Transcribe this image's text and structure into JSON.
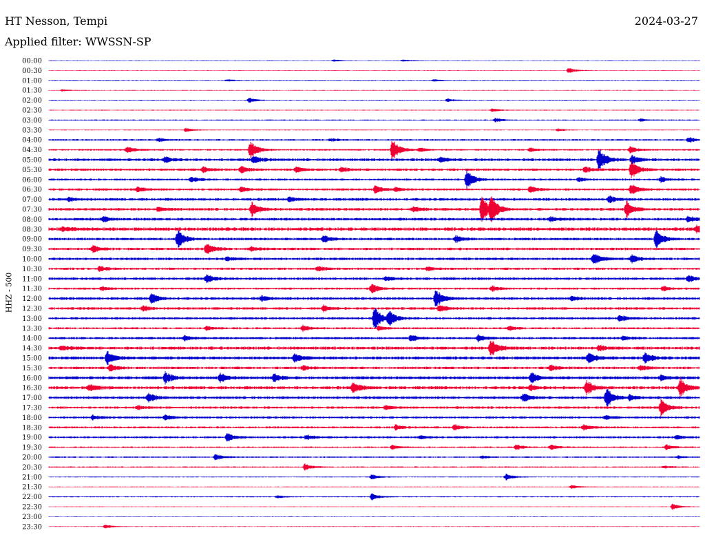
{
  "header": {
    "station": "HT Nesson, Tempi",
    "date": "2024-03-27",
    "filter": "Applied filter: WWSSN-SP"
  },
  "chart_data": {
    "type": "line",
    "title": "HT Nesson, Tempi",
    "ylabel": "HHZ - 500",
    "colors": [
      "#0000cc",
      "#ee0033"
    ],
    "rows": [
      {
        "label": "00:00",
        "amp": 0.4,
        "events": [
          [
            485,
            1.5
          ],
          [
            585,
            1.5
          ]
        ]
      },
      {
        "label": "00:30",
        "amp": 0.4,
        "events": [
          [
            826,
            4
          ]
        ]
      },
      {
        "label": "01:00",
        "amp": 0.5,
        "events": [
          [
            330,
            1.5
          ],
          [
            630,
            1.5
          ]
        ]
      },
      {
        "label": "01:30",
        "amp": 0.4,
        "events": [
          [
            90,
            1.5
          ]
        ]
      },
      {
        "label": "02:00",
        "amp": 0.5,
        "events": [
          [
            362,
            4
          ],
          [
            650,
            2.5
          ]
        ]
      },
      {
        "label": "02:30",
        "amp": 0.5,
        "events": [
          [
            715,
            2.5
          ]
        ]
      },
      {
        "label": "03:00",
        "amp": 0.7,
        "events": [
          [
            720,
            3
          ],
          [
            930,
            2
          ]
        ]
      },
      {
        "label": "03:30",
        "amp": 0.5,
        "events": [
          [
            270,
            3
          ],
          [
            810,
            2
          ]
        ]
      },
      {
        "label": "04:00",
        "amp": 1.0,
        "events": [
          [
            230,
            3
          ],
          [
            480,
            2
          ],
          [
            1000,
            4
          ]
        ]
      },
      {
        "label": "04:30",
        "amp": 1.0,
        "events": [
          [
            185,
            5
          ],
          [
            364,
            14
          ],
          [
            570,
            16
          ],
          [
            610,
            3
          ],
          [
            770,
            3
          ],
          [
            915,
            5
          ]
        ]
      },
      {
        "label": "05:00",
        "amp": 1.6,
        "events": [
          [
            240,
            4
          ],
          [
            368,
            6
          ],
          [
            640,
            4
          ],
          [
            870,
            18
          ],
          [
            918,
            6
          ]
        ]
      },
      {
        "label": "05:30",
        "amp": 1.4,
        "events": [
          [
            295,
            4
          ],
          [
            350,
            6
          ],
          [
            430,
            4
          ],
          [
            495,
            4
          ],
          [
            850,
            4
          ],
          [
            917,
            14
          ]
        ]
      },
      {
        "label": "06:00",
        "amp": 1.2,
        "events": [
          [
            278,
            4
          ],
          [
            678,
            14
          ],
          [
            840,
            3
          ],
          [
            960,
            4
          ]
        ]
      },
      {
        "label": "06:30",
        "amp": 1.3,
        "events": [
          [
            200,
            4
          ],
          [
            350,
            4
          ],
          [
            545,
            6
          ],
          [
            575,
            3
          ],
          [
            770,
            5
          ],
          [
            917,
            8
          ]
        ]
      },
      {
        "label": "07:00",
        "amp": 1.6,
        "events": [
          [
            100,
            3
          ],
          [
            420,
            3
          ],
          [
            885,
            5
          ]
        ]
      },
      {
        "label": "07:30",
        "amp": 1.6,
        "events": [
          [
            230,
            3
          ],
          [
            366,
            10
          ],
          [
            600,
            4
          ],
          [
            700,
            20
          ],
          [
            713,
            18
          ],
          [
            910,
            12
          ]
        ]
      },
      {
        "label": "08:00",
        "amp": 1.6,
        "events": [
          [
            150,
            4
          ],
          [
            800,
            3
          ],
          [
            1000,
            4
          ]
        ]
      },
      {
        "label": "08:30",
        "amp": 2.0,
        "events": [
          [
            90,
            3
          ],
          [
            1012,
            5
          ]
        ]
      },
      {
        "label": "09:00",
        "amp": 1.5,
        "events": [
          [
            258,
            14
          ],
          [
            470,
            5
          ],
          [
            662,
            5
          ],
          [
            953,
            14
          ]
        ]
      },
      {
        "label": "09:30",
        "amp": 1.5,
        "events": [
          [
            135,
            5
          ],
          [
            300,
            9
          ],
          [
            365,
            3
          ]
        ]
      },
      {
        "label": "10:00",
        "amp": 1.5,
        "events": [
          [
            330,
            3
          ],
          [
            862,
            9
          ],
          [
            918,
            6
          ]
        ]
      },
      {
        "label": "10:30",
        "amp": 1.3,
        "events": [
          [
            145,
            4
          ],
          [
            462,
            4
          ],
          [
            620,
            3
          ]
        ]
      },
      {
        "label": "11:00",
        "amp": 1.5,
        "events": [
          [
            300,
            6
          ],
          [
            560,
            3
          ],
          [
            1000,
            6
          ]
        ]
      },
      {
        "label": "11:30",
        "amp": 1.2,
        "events": [
          [
            148,
            3
          ],
          [
            540,
            8
          ],
          [
            715,
            4
          ],
          [
            963,
            4
          ]
        ]
      },
      {
        "label": "12:00",
        "amp": 1.6,
        "events": [
          [
            220,
            7
          ],
          [
            380,
            4
          ],
          [
            633,
            14
          ],
          [
            830,
            3
          ]
        ]
      },
      {
        "label": "12:30",
        "amp": 1.5,
        "events": [
          [
            208,
            4
          ],
          [
            470,
            5
          ],
          [
            638,
            6
          ]
        ]
      },
      {
        "label": "13:00",
        "amp": 1.4,
        "events": [
          [
            544,
            16
          ],
          [
            565,
            10
          ],
          [
            900,
            5
          ]
        ]
      },
      {
        "label": "13:30",
        "amp": 1.2,
        "events": [
          [
            300,
            3
          ],
          [
            440,
            4
          ],
          [
            550,
            3
          ],
          [
            740,
            3
          ]
        ]
      },
      {
        "label": "14:00",
        "amp": 1.4,
        "events": [
          [
            268,
            4
          ],
          [
            597,
            5
          ],
          [
            695,
            5
          ],
          [
            905,
            3
          ]
        ]
      },
      {
        "label": "14:30",
        "amp": 1.8,
        "events": [
          [
            90,
            3
          ],
          [
            713,
            14
          ],
          [
            870,
            4
          ]
        ]
      },
      {
        "label": "15:00",
        "amp": 1.8,
        "events": [
          [
            156,
            10
          ],
          [
            428,
            6
          ],
          [
            855,
            9
          ],
          [
            937,
            7
          ]
        ]
      },
      {
        "label": "15:30",
        "amp": 1.5,
        "events": [
          [
            160,
            5
          ],
          [
            440,
            3
          ],
          [
            800,
            4
          ],
          [
            930,
            4
          ]
        ]
      },
      {
        "label": "16:00",
        "amp": 1.8,
        "events": [
          [
            240,
            8
          ],
          [
            320,
            7
          ],
          [
            398,
            6
          ],
          [
            772,
            8
          ],
          [
            960,
            4
          ]
        ]
      },
      {
        "label": "16:30",
        "amp": 1.8,
        "events": [
          [
            130,
            5
          ],
          [
            513,
            8
          ],
          [
            770,
            4
          ],
          [
            852,
            10
          ],
          [
            988,
            14
          ]
        ]
      },
      {
        "label": "17:00",
        "amp": 1.6,
        "events": [
          [
            216,
            7
          ],
          [
            760,
            6
          ],
          [
            881,
            16
          ],
          [
            915,
            4
          ]
        ]
      },
      {
        "label": "17:30",
        "amp": 1.4,
        "events": [
          [
            200,
            3
          ],
          [
            560,
            3
          ],
          [
            960,
            12
          ]
        ]
      },
      {
        "label": "18:00",
        "amp": 1.3,
        "events": [
          [
            135,
            3
          ],
          [
            240,
            4
          ],
          [
            880,
            3
          ]
        ]
      },
      {
        "label": "18:30",
        "amp": 1.2,
        "events": [
          [
            575,
            4
          ],
          [
            660,
            4
          ],
          [
            848,
            4
          ]
        ]
      },
      {
        "label": "19:00",
        "amp": 1.2,
        "events": [
          [
            330,
            6
          ],
          [
            445,
            4
          ],
          [
            610,
            3
          ],
          [
            983,
            3
          ]
        ]
      },
      {
        "label": "19:30",
        "amp": 0.9,
        "events": [
          [
            570,
            3
          ],
          [
            750,
            4
          ],
          [
            800,
            4
          ],
          [
            968,
            4
          ]
        ]
      },
      {
        "label": "20:00",
        "amp": 0.8,
        "events": [
          [
            313,
            5
          ],
          [
            700,
            2
          ],
          [
            985,
            2
          ]
        ]
      },
      {
        "label": "20:30",
        "amp": 0.8,
        "events": [
          [
            443,
            5
          ],
          [
            965,
            2
          ]
        ]
      },
      {
        "label": "21:00",
        "amp": 0.5,
        "events": [
          [
            540,
            4
          ],
          [
            735,
            5
          ]
        ]
      },
      {
        "label": "21:30",
        "amp": 0.5,
        "events": [
          [
            830,
            3
          ]
        ]
      },
      {
        "label": "22:00",
        "amp": 0.6,
        "events": [
          [
            540,
            5
          ],
          [
            403,
            2
          ]
        ]
      },
      {
        "label": "22:30",
        "amp": 0.4,
        "events": [
          [
            977,
            5
          ]
        ]
      },
      {
        "label": "23:00",
        "amp": 0.3,
        "events": []
      },
      {
        "label": "23:30",
        "amp": 0.4,
        "events": [
          [
            153,
            3
          ]
        ]
      }
    ]
  }
}
